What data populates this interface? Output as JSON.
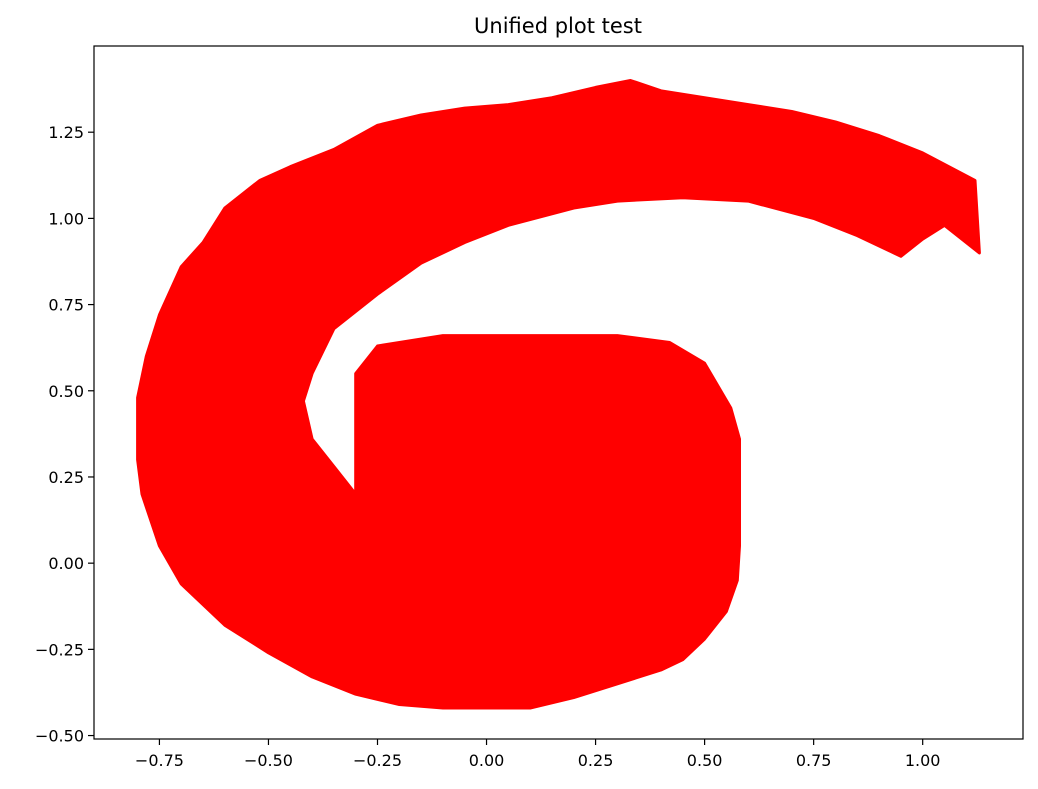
{
  "chart_data": {
    "type": "area",
    "title": "Unified plot test",
    "xlabel": "",
    "ylabel": "",
    "xlim": [
      -0.9,
      1.23
    ],
    "ylim": [
      -0.51,
      1.5
    ],
    "xticks": [
      -0.75,
      -0.5,
      -0.25,
      0.0,
      0.25,
      0.5,
      0.75,
      1.0
    ],
    "xtick_labels": [
      "−0.75",
      "−0.50",
      "−0.25",
      "0.00",
      "0.25",
      "0.50",
      "0.75",
      "1.00"
    ],
    "yticks": [
      -0.5,
      -0.25,
      0.0,
      0.25,
      0.5,
      0.75,
      1.0,
      1.25
    ],
    "ytick_labels": [
      "−0.50",
      "−0.25",
      "0.00",
      "0.25",
      "0.50",
      "0.75",
      "1.00",
      "1.25"
    ],
    "grid": false,
    "series": [
      {
        "color": "#ff0000",
        "description_points": "spiral band, estimated outline",
        "outer": [
          [
            1.13,
            0.9
          ],
          [
            1.12,
            1.11
          ],
          [
            1.0,
            1.19
          ],
          [
            0.9,
            1.24
          ],
          [
            0.8,
            1.28
          ],
          [
            0.7,
            1.31
          ],
          [
            0.6,
            1.33
          ],
          [
            0.5,
            1.35
          ],
          [
            0.4,
            1.37
          ],
          [
            0.33,
            1.4
          ],
          [
            0.25,
            1.38
          ],
          [
            0.15,
            1.35
          ],
          [
            0.05,
            1.33
          ],
          [
            -0.05,
            1.32
          ],
          [
            -0.15,
            1.3
          ],
          [
            -0.25,
            1.27
          ],
          [
            -0.35,
            1.2
          ],
          [
            -0.45,
            1.15
          ],
          [
            -0.52,
            1.11
          ],
          [
            -0.6,
            1.03
          ],
          [
            -0.65,
            0.93
          ],
          [
            -0.7,
            0.86
          ],
          [
            -0.75,
            0.72
          ],
          [
            -0.78,
            0.6
          ],
          [
            -0.8,
            0.48
          ],
          [
            -0.8,
            0.3
          ],
          [
            -0.79,
            0.2
          ],
          [
            -0.75,
            0.05
          ],
          [
            -0.7,
            -0.06
          ],
          [
            -0.6,
            -0.18
          ],
          [
            -0.5,
            -0.26
          ],
          [
            -0.4,
            -0.33
          ],
          [
            -0.3,
            -0.38
          ],
          [
            -0.2,
            -0.41
          ],
          [
            -0.1,
            -0.42
          ],
          [
            0.0,
            -0.42
          ],
          [
            0.1,
            -0.42
          ],
          [
            0.2,
            -0.39
          ],
          [
            0.3,
            -0.35
          ],
          [
            0.4,
            -0.31
          ],
          [
            0.45,
            -0.28
          ],
          [
            0.5,
            -0.22
          ],
          [
            0.55,
            -0.14
          ],
          [
            0.575,
            -0.05
          ],
          [
            0.58,
            0.05
          ]
        ],
        "inner": [
          [
            0.58,
            0.36
          ],
          [
            0.56,
            0.45
          ],
          [
            0.5,
            0.58
          ],
          [
            0.42,
            0.64
          ],
          [
            0.3,
            0.66
          ],
          [
            0.1,
            0.66
          ],
          [
            -0.1,
            0.66
          ],
          [
            -0.25,
            0.63
          ],
          [
            -0.3,
            0.55
          ],
          [
            -0.3,
            0.45
          ],
          [
            -0.3,
            0.2
          ],
          [
            -0.35,
            0.28
          ],
          [
            -0.4,
            0.36
          ],
          [
            -0.42,
            0.47
          ],
          [
            -0.4,
            0.55
          ],
          [
            -0.35,
            0.68
          ],
          [
            -0.25,
            0.78
          ],
          [
            -0.15,
            0.87
          ],
          [
            -0.05,
            0.93
          ],
          [
            0.05,
            0.98
          ],
          [
            0.2,
            1.03
          ],
          [
            0.3,
            1.05
          ],
          [
            0.45,
            1.06
          ],
          [
            0.6,
            1.05
          ],
          [
            0.75,
            1.0
          ],
          [
            0.85,
            0.95
          ],
          [
            0.95,
            0.89
          ],
          [
            1.0,
            0.94
          ],
          [
            1.05,
            0.98
          ],
          [
            1.13,
            0.9
          ]
        ]
      }
    ]
  }
}
